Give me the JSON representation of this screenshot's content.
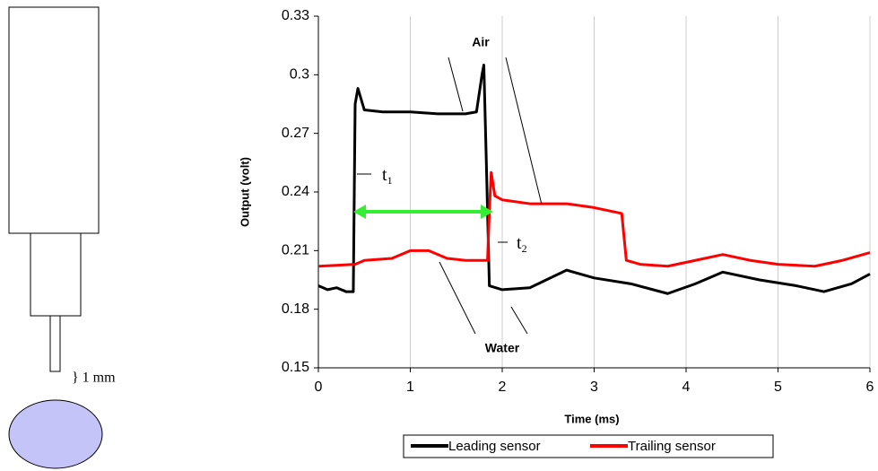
{
  "chart_data": {
    "type": "line",
    "xlabel": "Time (ms)",
    "ylabel": "Output (volt)",
    "xlim": [
      0,
      6
    ],
    "xticks": [
      0,
      1,
      2,
      3,
      4,
      5,
      6
    ],
    "ylim": [
      0.15,
      0.33
    ],
    "yticks": [
      0.15,
      0.18,
      0.21,
      0.24,
      0.27,
      0.3,
      0.33
    ],
    "grid": "x",
    "series": [
      {
        "name": "Leading sensor",
        "color": "#000000",
        "x": [
          0,
          0.1,
          0.2,
          0.3,
          0.38,
          0.4,
          0.43,
          0.5,
          0.7,
          1.0,
          1.3,
          1.6,
          1.72,
          1.78,
          1.8,
          1.83,
          1.86,
          2.0,
          2.3,
          2.7,
          3.0,
          3.4,
          3.8,
          4.1,
          4.4,
          4.8,
          5.2,
          5.5,
          5.8,
          6.0
        ],
        "values": [
          0.192,
          0.19,
          0.191,
          0.189,
          0.189,
          0.285,
          0.293,
          0.282,
          0.281,
          0.281,
          0.28,
          0.28,
          0.281,
          0.3,
          0.305,
          0.25,
          0.192,
          0.19,
          0.191,
          0.2,
          0.196,
          0.193,
          0.188,
          0.193,
          0.199,
          0.195,
          0.192,
          0.189,
          0.193,
          0.198
        ]
      },
      {
        "name": "Trailing sensor",
        "color": "#ff0000",
        "x": [
          0,
          0.4,
          0.5,
          0.8,
          1.0,
          1.2,
          1.4,
          1.6,
          1.84,
          1.86,
          1.88,
          1.92,
          2.0,
          2.3,
          2.7,
          3.0,
          3.3,
          3.35,
          3.5,
          3.8,
          4.1,
          4.4,
          4.7,
          5.0,
          5.4,
          5.7,
          6.0
        ],
        "values": [
          0.202,
          0.203,
          0.205,
          0.206,
          0.21,
          0.21,
          0.206,
          0.205,
          0.205,
          0.23,
          0.25,
          0.238,
          0.236,
          0.234,
          0.234,
          0.232,
          0.229,
          0.205,
          0.203,
          0.202,
          0.205,
          0.208,
          0.205,
          0.203,
          0.202,
          0.205,
          0.209
        ]
      }
    ],
    "annotations": {
      "air": "Air",
      "water": "Water",
      "t1": {
        "text": "t",
        "sub": "1"
      },
      "t2": {
        "text": "t",
        "sub": "2"
      }
    }
  },
  "diagram": {
    "gap_label": "} 1 mm"
  }
}
